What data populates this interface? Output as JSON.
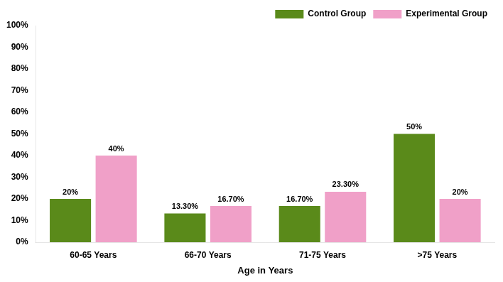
{
  "chart_data": {
    "type": "bar",
    "xlabel": "Age in Years",
    "categories": [
      "60-65 Years",
      "66-70 Years",
      "71-75 Years",
      ">75 Years"
    ],
    "series": [
      {
        "name": "Control Group",
        "color": "#5a8a1a",
        "values": [
          20,
          13.3,
          16.7,
          50
        ],
        "value_labels": [
          "20%",
          "13.30%",
          "16.70%",
          "50%"
        ]
      },
      {
        "name": "Experimental Group",
        "color": "#f0a0c8",
        "values": [
          40,
          16.7,
          23.3,
          20
        ],
        "value_labels": [
          "40%",
          "16.70%",
          "23.30%",
          "20%"
        ]
      }
    ],
    "ylim": [
      0,
      100
    ],
    "yticks": [
      {
        "value": 0,
        "label": "0%"
      },
      {
        "value": 10,
        "label": "10%"
      },
      {
        "value": 20,
        "label": "20%"
      },
      {
        "value": 30,
        "label": "30%"
      },
      {
        "value": 40,
        "label": "40%"
      },
      {
        "value": 50,
        "label": "50%"
      },
      {
        "value": 60,
        "label": "60%"
      },
      {
        "value": 70,
        "label": "70%"
      },
      {
        "value": 80,
        "label": "80%"
      },
      {
        "value": 90,
        "label": "90%"
      },
      {
        "value": 100,
        "label": "100%"
      }
    ],
    "grid": false,
    "legend": "upper right",
    "data_labels": true
  }
}
